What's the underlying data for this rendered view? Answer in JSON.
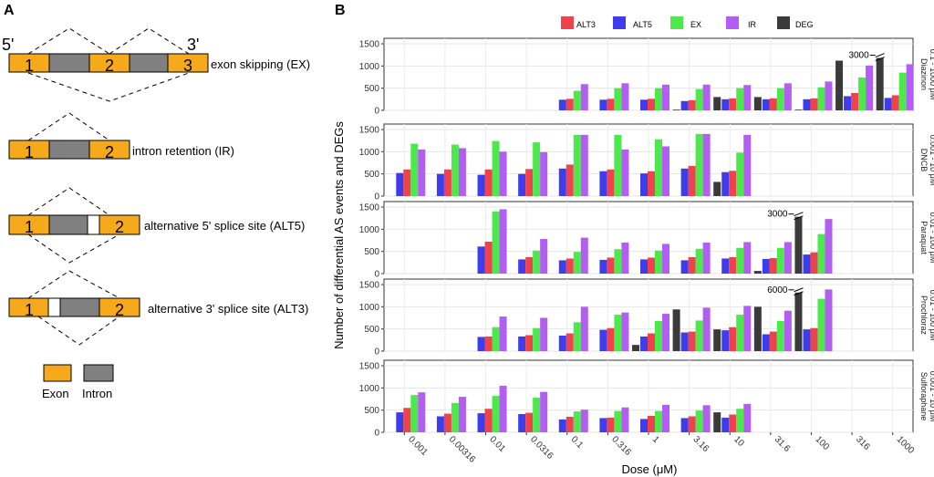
{
  "panelA": {
    "label": "A",
    "prime5": "5'",
    "prime3": "3'",
    "diagrams": [
      {
        "caption": "exon skipping (EX)",
        "exons": [
          "1",
          "2",
          "3"
        ]
      },
      {
        "caption": "intron retention (IR)",
        "exons": [
          "1",
          "2"
        ]
      },
      {
        "caption": "alternative 5' splice site (ALT5)",
        "exons": [
          "1",
          "2"
        ]
      },
      {
        "caption": "alternative 3' splice site (ALT3)",
        "exons": [
          "1",
          "2"
        ]
      }
    ],
    "legend": {
      "exon": "Exon",
      "intron": "Intron"
    }
  },
  "colors": {
    "exon": "#F5A91B",
    "intron": "#808080",
    "ALT3": "#F0424C",
    "ALT5": "#3D3DEB",
    "EX": "#4CE84C",
    "IR": "#B25EF2",
    "DEG": "#3A3A3A"
  },
  "chart_data": {
    "type": "bar",
    "panel_label": "B",
    "ylabel": "Number of differential AS events and DEGs",
    "xlabel": "Dose (μM)",
    "legend": [
      "ALT3",
      "ALT5",
      "EX",
      "IR",
      "DEG"
    ],
    "ylim": [
      0,
      1500
    ],
    "yticks": [
      "0",
      "500",
      "1000",
      "1500"
    ],
    "categories": [
      "0.001",
      "0.00316",
      "0.01",
      "0.0316",
      "0.1",
      "0.316",
      "1",
      "3.16",
      "10",
      "31.6",
      "100",
      "316",
      "1000"
    ],
    "facets": [
      {
        "name": "Diazinon",
        "range": "0.1 - 1000 μM",
        "DEG": [
          null,
          null,
          null,
          null,
          null,
          null,
          null,
          10,
          300,
          300,
          0,
          1120,
          1180
        ],
        "ALT5": [
          null,
          null,
          null,
          null,
          240,
          240,
          240,
          210,
          250,
          250,
          250,
          320,
          280
        ],
        "ALT3": [
          null,
          null,
          null,
          null,
          260,
          260,
          260,
          230,
          270,
          270,
          270,
          390,
          340
        ],
        "EX": [
          null,
          null,
          null,
          null,
          440,
          500,
          500,
          480,
          500,
          500,
          520,
          740,
          850
        ],
        "IR": [
          null,
          null,
          null,
          null,
          590,
          610,
          580,
          580,
          570,
          610,
          650,
          1010,
          1040
        ],
        "breaks": [
          {
            "index": 12,
            "label": "3000"
          }
        ]
      },
      {
        "name": "DNCB",
        "range": "0.001 - 10 μM",
        "DEG": [
          null,
          null,
          null,
          null,
          null,
          null,
          null,
          null,
          320,
          null,
          null,
          null,
          null
        ],
        "ALT5": [
          520,
          500,
          480,
          500,
          620,
          560,
          510,
          620,
          540,
          null,
          null,
          null,
          null
        ],
        "ALT3": [
          600,
          600,
          600,
          610,
          710,
          600,
          560,
          680,
          570,
          null,
          null,
          null,
          null
        ],
        "EX": [
          1180,
          1160,
          1240,
          1210,
          1380,
          1380,
          1280,
          1400,
          980,
          null,
          null,
          null,
          null
        ],
        "IR": [
          1050,
          1080,
          1000,
          990,
          1380,
          1050,
          1120,
          1400,
          1380,
          null,
          null,
          null,
          null
        ],
        "breaks": []
      },
      {
        "name": "Paraquat",
        "range": "0.01 - 100 μM",
        "DEG": [
          null,
          null,
          null,
          null,
          null,
          null,
          null,
          null,
          null,
          60,
          1280,
          null,
          null
        ],
        "ALT5": [
          null,
          null,
          610,
          320,
          300,
          310,
          320,
          300,
          340,
          330,
          430,
          null,
          null
        ],
        "ALT3": [
          null,
          null,
          720,
          370,
          340,
          360,
          360,
          370,
          370,
          350,
          480,
          null,
          null
        ],
        "EX": [
          null,
          null,
          1400,
          520,
          490,
          550,
          520,
          560,
          580,
          580,
          890,
          null,
          null
        ],
        "IR": [
          null,
          null,
          1450,
          780,
          810,
          700,
          670,
          700,
          710,
          710,
          1230,
          null,
          null
        ],
        "breaks": [
          {
            "index": 10,
            "label": "3000"
          }
        ]
      },
      {
        "name": "Prochloraz",
        "range": "0.01 - 100 μM",
        "DEG": [
          null,
          null,
          null,
          null,
          null,
          null,
          140,
          940,
          490,
          1000,
          1320,
          null,
          null
        ],
        "ALT5": [
          null,
          null,
          320,
          330,
          350,
          480,
          330,
          420,
          470,
          380,
          490,
          null,
          null
        ],
        "ALT3": [
          null,
          null,
          330,
          360,
          400,
          520,
          400,
          440,
          540,
          440,
          520,
          null,
          null
        ],
        "EX": [
          null,
          null,
          540,
          520,
          650,
          820,
          680,
          690,
          820,
          680,
          1180,
          null,
          null
        ],
        "IR": [
          null,
          null,
          780,
          750,
          1000,
          870,
          840,
          980,
          1020,
          910,
          1390,
          null,
          null
        ],
        "breaks": [
          {
            "index": 10,
            "label": "6000"
          }
        ]
      },
      {
        "name": "Sulforaphane",
        "range": "0.001 - 10 μM",
        "DEG": [
          null,
          null,
          null,
          null,
          null,
          null,
          null,
          null,
          450,
          null,
          null,
          null,
          null
        ],
        "ALT5": [
          450,
          360,
          430,
          410,
          290,
          320,
          300,
          320,
          330,
          null,
          null,
          null,
          null
        ],
        "ALT3": [
          550,
          420,
          530,
          440,
          350,
          330,
          370,
          360,
          400,
          null,
          null,
          null,
          null
        ],
        "EX": [
          840,
          660,
          820,
          780,
          470,
          480,
          480,
          490,
          530,
          null,
          null,
          null,
          null
        ],
        "IR": [
          900,
          800,
          1050,
          910,
          510,
          560,
          620,
          610,
          640,
          null,
          null,
          null,
          null
        ],
        "breaks": []
      }
    ]
  }
}
